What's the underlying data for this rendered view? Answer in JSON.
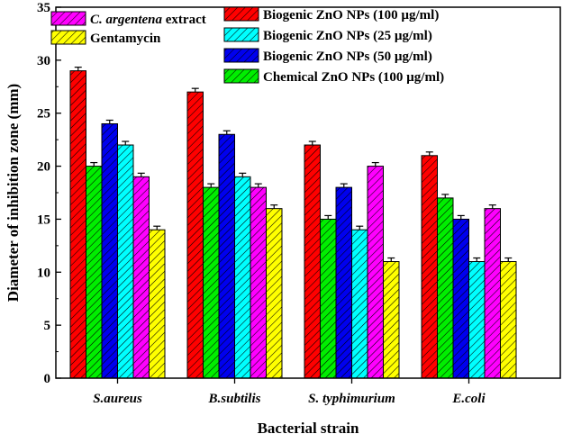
{
  "chart_data": {
    "type": "bar",
    "title": "",
    "xlabel": "Bacterial strain",
    "ylabel": "Diameter of inhibition zone (mm)",
    "ylim": [
      0,
      35
    ],
    "yticks": [
      0,
      5,
      10,
      15,
      20,
      25,
      30,
      35
    ],
    "grid": false,
    "error_bars": true,
    "bar_pattern": "diagonal-hatch",
    "categories": [
      "S.aureus",
      "B.subtilis",
      "S. typhimurium",
      "E.coli"
    ],
    "series": [
      {
        "name": "Biogenic ZnO NPs (100 µg/ml)",
        "color": "#ff0000",
        "values": [
          29,
          27,
          22,
          21
        ]
      },
      {
        "name": "Chemical  ZnO NPs (100 µg/ml)",
        "color": "#00ee00",
        "values": [
          20,
          18,
          15,
          17
        ]
      },
      {
        "name": "Biogenic ZnO NPs (50 µg/ml)",
        "color": "#0000ee",
        "values": [
          24,
          23,
          18,
          15
        ]
      },
      {
        "name": "Biogenic ZnO NPs (25 µg/ml)",
        "color": "#00ffff",
        "values": [
          22,
          19,
          14,
          11
        ]
      },
      {
        "name": "C. argentena extract",
        "name_italic_part": "C. argentena",
        "name_rest": " extract",
        "color": "#ff00ff",
        "values": [
          19,
          18,
          20,
          16
        ]
      },
      {
        "name": "Gentamycin",
        "color": "#ffff00",
        "values": [
          14,
          16,
          11,
          11
        ]
      }
    ],
    "legend": {
      "placement": "top",
      "left_column": [
        4,
        5
      ],
      "right_column": [
        0,
        3,
        2,
        1
      ]
    }
  }
}
